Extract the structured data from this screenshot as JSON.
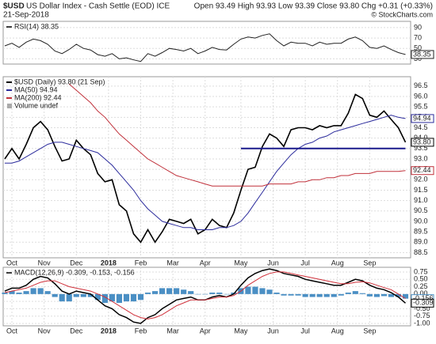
{
  "header": {
    "symbol": "$USD",
    "name": "US Dollar Index - Cash Settle (EOD) ICE",
    "date": "21-Sep-2018",
    "quote": "Open 93.49 High 93.93 Low 93.39 Close 93.80 Chg +0.31 (+0.33%)",
    "source": "© StockCharts.com"
  },
  "chart_data": [
    {
      "type": "line",
      "legend_title": "RSI(14) 38.35",
      "x": [
        0,
        1,
        2,
        3,
        4,
        5,
        6,
        7,
        8,
        9,
        10,
        11,
        12,
        13,
        14,
        15,
        16,
        17,
        18,
        19,
        20,
        21,
        22,
        23,
        24,
        25,
        26,
        27,
        28,
        29,
        30,
        31,
        32,
        33,
        34,
        35,
        36,
        37,
        38,
        39,
        40,
        41,
        42,
        43,
        44,
        45,
        46,
        47,
        48,
        49,
        50,
        51,
        52,
        53,
        54,
        55,
        56
      ],
      "xlim": [
        0,
        56.5
      ],
      "ylim": [
        20,
        102
      ],
      "yticks": [
        90,
        70,
        50,
        30
      ],
      "grid": true,
      "series": [
        {
          "color": "#222222",
          "end_tag": true,
          "values": [
            55,
            60,
            52,
            62,
            68,
            65,
            58,
            45,
            40,
            48,
            58,
            50,
            47,
            38,
            35,
            40,
            30,
            32,
            28,
            25,
            40,
            35,
            42,
            50,
            48,
            45,
            50,
            40,
            45,
            52,
            48,
            47,
            58,
            68,
            72,
            70,
            75,
            78,
            65,
            55,
            62,
            60,
            60,
            55,
            62,
            58,
            60,
            60,
            68,
            72,
            65,
            52,
            50,
            55,
            48,
            42,
            38.35
          ]
        }
      ]
    },
    {
      "type": "line",
      "volume_label": "Volume undef",
      "x": [
        0,
        1,
        2,
        3,
        4,
        5,
        6,
        7,
        8,
        9,
        10,
        11,
        12,
        13,
        14,
        15,
        16,
        17,
        18,
        19,
        20,
        21,
        22,
        23,
        24,
        25,
        26,
        27,
        28,
        29,
        30,
        31,
        32,
        33,
        34,
        35,
        36,
        37,
        38,
        39,
        40,
        41,
        42,
        43,
        44,
        45,
        46,
        47,
        48,
        49,
        50,
        51,
        52,
        53,
        54,
        55,
        56
      ],
      "xlim": [
        0,
        56.5
      ],
      "ylim": [
        88.25,
        96.95
      ],
      "grid": true,
      "yticks": [
        96.5,
        {
          "value": 96,
          "label": "96.0"
        },
        95.5,
        {
          "value": 95,
          "label": "95.0"
        },
        94.5,
        {
          "value": 94,
          "label": "94.0"
        },
        93.5,
        {
          "value": 93,
          "label": "93.0"
        },
        92.5,
        {
          "value": 92,
          "label": "92.0"
        },
        91.5,
        {
          "value": 91,
          "label": "91.0"
        },
        90.5,
        {
          "value": 90,
          "label": "90.0"
        },
        89.5,
        {
          "value": 89,
          "label": "89.0"
        },
        88.5
      ],
      "xticks": [
        {
          "value": 1,
          "label": "Oct"
        },
        {
          "value": 5.5,
          "label": "Nov"
        },
        {
          "value": 10,
          "label": "Dec"
        },
        {
          "value": 14.5,
          "label": "2018"
        },
        {
          "value": 19,
          "label": "Feb"
        },
        {
          "value": 23.5,
          "label": "Mar"
        },
        {
          "value": 28,
          "label": "Apr"
        },
        {
          "value": 33,
          "label": "May"
        },
        {
          "value": 37.5,
          "label": "Jun"
        },
        {
          "value": 42,
          "label": "Jul"
        },
        {
          "value": 46.5,
          "label": "Aug"
        },
        {
          "value": 51,
          "label": "Sep"
        }
      ],
      "hline": {
        "y": 93.5,
        "x": [
          33,
          56
        ],
        "color": "#1a1a8c"
      },
      "series": [
        {
          "name": "$USD (Daily) 93.80 (21 Sep)",
          "color": "#000000",
          "end_label": "93.80",
          "width": 1.6,
          "values": [
            93.0,
            93.5,
            93.0,
            93.7,
            94.5,
            94.8,
            94.4,
            93.6,
            92.9,
            93.0,
            93.9,
            93.5,
            93.2,
            92.3,
            91.9,
            92.0,
            90.8,
            90.5,
            89.4,
            89.0,
            89.6,
            89.0,
            89.5,
            90.1,
            90.0,
            89.9,
            90.1,
            89.4,
            89.6,
            90.1,
            89.8,
            89.7,
            90.4,
            91.5,
            92.5,
            92.6,
            93.6,
            94.2,
            94.0,
            93.6,
            94.4,
            94.5,
            94.5,
            94.4,
            94.6,
            94.5,
            94.6,
            94.6,
            95.2,
            96.1,
            95.9,
            95.1,
            95.0,
            95.3,
            94.9,
            94.5,
            93.8
          ]
        },
        {
          "name": "MA(50) 94.94",
          "color": "#2b2b9c",
          "end_tag": true,
          "width": 1,
          "values": [
            92.8,
            92.8,
            92.9,
            93.1,
            93.3,
            93.5,
            93.7,
            93.8,
            93.8,
            93.7,
            93.6,
            93.5,
            93.4,
            93.3,
            93.0,
            92.7,
            92.3,
            91.9,
            91.5,
            91.0,
            90.6,
            90.3,
            90.0,
            89.9,
            89.8,
            89.7,
            89.7,
            89.6,
            89.6,
            89.6,
            89.7,
            89.7,
            89.8,
            90.0,
            90.4,
            90.9,
            91.4,
            91.9,
            92.4,
            92.8,
            93.2,
            93.5,
            93.7,
            93.8,
            94.0,
            94.1,
            94.3,
            94.4,
            94.5,
            94.6,
            94.7,
            94.8,
            94.9,
            95.0,
            95.1,
            95.0,
            94.94
          ]
        },
        {
          "name": "MA(200) 92.44",
          "color": "#c0303a",
          "end_tag": true,
          "width": 1,
          "values": [
            null,
            null,
            null,
            null,
            null,
            null,
            null,
            null,
            null,
            96.6,
            96.3,
            96.0,
            95.7,
            95.3,
            95.0,
            94.6,
            94.2,
            93.9,
            93.6,
            93.3,
            93.0,
            92.8,
            92.6,
            92.4,
            92.2,
            92.1,
            92.0,
            91.9,
            91.8,
            91.7,
            91.7,
            91.7,
            91.7,
            91.7,
            91.7,
            91.7,
            91.7,
            91.8,
            91.8,
            91.8,
            91.8,
            91.9,
            91.9,
            92.0,
            92.0,
            92.1,
            92.1,
            92.2,
            92.2,
            92.3,
            92.3,
            92.3,
            92.4,
            92.4,
            92.4,
            92.4,
            92.44
          ]
        }
      ]
    },
    {
      "type": "line",
      "legend_title": "MACD(12,26,9) -0.309, -0.153, -0.156",
      "x": [
        0,
        1,
        2,
        3,
        4,
        5,
        6,
        7,
        8,
        9,
        10,
        11,
        12,
        13,
        14,
        15,
        16,
        17,
        18,
        19,
        20,
        21,
        22,
        23,
        24,
        25,
        26,
        27,
        28,
        29,
        30,
        31,
        32,
        33,
        34,
        35,
        36,
        37,
        38,
        39,
        40,
        41,
        42,
        43,
        44,
        45,
        46,
        47,
        48,
        49,
        50,
        51,
        52,
        53,
        54,
        55,
        56
      ],
      "xlim": [
        0,
        56.5
      ],
      "ylim": [
        -1.08,
        0.91
      ],
      "grid": true,
      "yticks": [
        0.75,
        {
          "value": 0.5,
          "label": "0.50"
        },
        0.25,
        {
          "value": 0,
          "label": "0.00"
        },
        -0.25,
        {
          "value": -0.5,
          "label": "-0.50"
        },
        -0.75,
        {
          "value": -1,
          "label": "-1.00"
        }
      ],
      "xticks": [
        {
          "value": 1,
          "label": "Oct"
        },
        {
          "value": 5.5,
          "label": "Nov"
        },
        {
          "value": 10,
          "label": "Dec"
        },
        {
          "value": 14.5,
          "label": "2018"
        },
        {
          "value": 19,
          "label": "Feb"
        },
        {
          "value": 23.5,
          "label": "Mar"
        },
        {
          "value": 28,
          "label": "Apr"
        },
        {
          "value": 33,
          "label": "May"
        },
        {
          "value": 37.5,
          "label": "Jun"
        },
        {
          "value": 42,
          "label": "Jul"
        },
        {
          "value": 46.5,
          "label": "Aug"
        },
        {
          "value": 51,
          "label": "Sep"
        }
      ],
      "series": [
        {
          "style": "histogram",
          "color": "#4a8fc4",
          "end_tag": true,
          "values": [
            0.05,
            0.1,
            0.05,
            0.1,
            0.2,
            0.2,
            0.1,
            -0.1,
            -0.25,
            -0.25,
            -0.1,
            -0.1,
            -0.1,
            -0.2,
            -0.3,
            -0.25,
            -0.3,
            -0.25,
            -0.25,
            -0.2,
            0.05,
            0.1,
            0.2,
            0.2,
            0.2,
            0.15,
            0.1,
            0.0,
            0.0,
            0.05,
            0.05,
            0.0,
            0.05,
            0.2,
            0.25,
            0.25,
            0.2,
            0.15,
            0.05,
            -0.05,
            -0.05,
            -0.05,
            -0.1,
            -0.1,
            -0.1,
            -0.1,
            -0.1,
            -0.05,
            0.05,
            0.1,
            0.03,
            -0.08,
            -0.1,
            -0.07,
            -0.1,
            -0.1,
            -0.156
          ]
        },
        {
          "color": "#000000",
          "end_tag": true,
          "width": 1.5,
          "values": [
            0.1,
            0.2,
            0.2,
            0.3,
            0.5,
            0.6,
            0.55,
            0.35,
            0.1,
            0.0,
            0.1,
            0.05,
            0.0,
            -0.2,
            -0.4,
            -0.5,
            -0.7,
            -0.8,
            -0.95,
            -1.0,
            -0.8,
            -0.7,
            -0.5,
            -0.35,
            -0.2,
            -0.15,
            -0.1,
            -0.2,
            -0.2,
            -0.1,
            -0.05,
            -0.1,
            0.0,
            0.3,
            0.55,
            0.7,
            0.8,
            0.85,
            0.8,
            0.7,
            0.65,
            0.6,
            0.5,
            0.45,
            0.4,
            0.35,
            0.3,
            0.3,
            0.4,
            0.5,
            0.45,
            0.3,
            0.2,
            0.15,
            0.05,
            -0.1,
            -0.309
          ]
        },
        {
          "color": "#d0303a",
          "width": 1,
          "values": [
            0.05,
            0.1,
            0.15,
            0.2,
            0.3,
            0.4,
            0.45,
            0.45,
            0.35,
            0.25,
            0.2,
            0.15,
            0.1,
            0.0,
            -0.1,
            -0.25,
            -0.4,
            -0.55,
            -0.7,
            -0.8,
            -0.85,
            -0.8,
            -0.7,
            -0.55,
            -0.4,
            -0.3,
            -0.2,
            -0.2,
            -0.2,
            -0.15,
            -0.1,
            -0.1,
            -0.05,
            0.1,
            0.3,
            0.45,
            0.6,
            0.7,
            0.75,
            0.75,
            0.7,
            0.65,
            0.6,
            0.55,
            0.5,
            0.45,
            0.4,
            0.35,
            0.35,
            0.4,
            0.42,
            0.38,
            0.3,
            0.22,
            0.15,
            0.0,
            -0.153
          ]
        }
      ]
    }
  ]
}
